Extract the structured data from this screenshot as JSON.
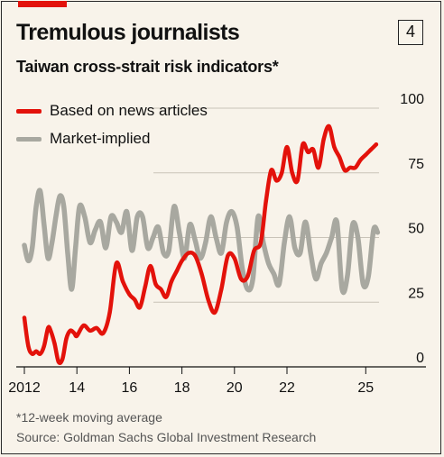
{
  "header": {
    "title": "Tremulous journalists",
    "badge": "4",
    "subtitle": "Taiwan cross-strait risk indicators*"
  },
  "footnotes": {
    "note": "*12-week moving average",
    "source": "Source: Goldman Sachs Global Investment Research"
  },
  "colors": {
    "news": "#e3120b",
    "market": "#a8a8a0",
    "background": "#f8f3ea",
    "grid": "#c9c3b8"
  },
  "chart_data": {
    "type": "line",
    "title": "Taiwan cross-strait risk indicators*",
    "xlabel": "",
    "ylabel": "",
    "xlim": [
      2011.8,
      2025.6
    ],
    "ylim": [
      0,
      100
    ],
    "y_ticks": [
      "0",
      "25",
      "50",
      "75",
      "100"
    ],
    "x_ticks": [
      {
        "x": 2012,
        "label": "2012"
      },
      {
        "x": 2014,
        "label": "14"
      },
      {
        "x": 2016,
        "label": "16"
      },
      {
        "x": 2018,
        "label": "18"
      },
      {
        "x": 2020,
        "label": "20"
      },
      {
        "x": 2022,
        "label": "22"
      },
      {
        "x": 2025,
        "label": "25"
      }
    ],
    "grid": true,
    "legend_position": "top-left",
    "series": [
      {
        "name": "Based on news articles",
        "color": "#e3120b",
        "x": [
          2012.0,
          2012.15,
          2012.3,
          2012.45,
          2012.6,
          2012.75,
          2012.9,
          2013.0,
          2013.15,
          2013.3,
          2013.45,
          2013.6,
          2013.75,
          2013.9,
          2014.0,
          2014.25,
          2014.5,
          2014.75,
          2015.0,
          2015.25,
          2015.5,
          2015.75,
          2016.0,
          2016.2,
          2016.4,
          2016.6,
          2016.8,
          2017.0,
          2017.2,
          2017.4,
          2017.6,
          2017.8,
          2018.0,
          2018.25,
          2018.5,
          2018.75,
          2019.0,
          2019.25,
          2019.5,
          2019.75,
          2020.0,
          2020.25,
          2020.5,
          2020.75,
          2021.0,
          2021.2,
          2021.4,
          2021.6,
          2021.8,
          2022.0,
          2022.2,
          2022.4,
          2022.6,
          2022.8,
          2023.0,
          2023.2,
          2023.4,
          2023.6,
          2023.8,
          2024.0,
          2024.2,
          2024.4,
          2024.6,
          2024.8,
          2025.0,
          2025.2,
          2025.4
        ],
        "values": [
          19,
          8,
          5,
          6,
          5,
          8,
          15,
          14,
          9,
          2,
          3,
          11,
          14,
          13,
          12,
          16,
          14,
          15,
          13,
          21,
          40,
          33,
          28,
          26,
          23,
          31,
          39,
          32,
          30,
          27,
          33,
          37,
          41,
          44,
          43,
          36,
          26,
          21,
          30,
          43,
          42,
          34,
          35,
          45,
          48,
          64,
          76,
          72,
          75,
          85,
          75,
          72,
          86,
          83,
          84,
          77,
          88,
          93,
          85,
          81,
          76,
          77,
          77,
          80,
          82,
          84,
          86
        ]
      },
      {
        "name": "Market-implied",
        "color": "#a8a8a0",
        "x": [
          2012.0,
          2012.15,
          2012.3,
          2012.45,
          2012.6,
          2012.75,
          2012.9,
          2013.05,
          2013.2,
          2013.35,
          2013.5,
          2013.65,
          2013.8,
          2013.95,
          2014.1,
          2014.3,
          2014.5,
          2014.7,
          2014.9,
          2015.1,
          2015.3,
          2015.5,
          2015.7,
          2015.9,
          2016.1,
          2016.3,
          2016.5,
          2016.7,
          2016.9,
          2017.1,
          2017.3,
          2017.5,
          2017.7,
          2017.9,
          2018.1,
          2018.3,
          2018.5,
          2018.7,
          2018.9,
          2019.1,
          2019.3,
          2019.5,
          2019.7,
          2019.9,
          2020.1,
          2020.3,
          2020.5,
          2020.7,
          2020.9,
          2021.1,
          2021.3,
          2021.5,
          2021.7,
          2021.9,
          2022.1,
          2022.3,
          2022.5,
          2022.7,
          2022.9,
          2023.1,
          2023.3,
          2023.5,
          2023.7,
          2023.9,
          2024.1,
          2024.3,
          2024.5,
          2024.7,
          2024.9,
          2025.1,
          2025.3,
          2025.45
        ],
        "values": [
          47,
          41,
          46,
          62,
          68,
          55,
          42,
          48,
          58,
          66,
          62,
          44,
          30,
          46,
          62,
          58,
          48,
          53,
          56,
          46,
          58,
          56,
          52,
          60,
          45,
          58,
          58,
          46,
          50,
          54,
          44,
          45,
          62,
          52,
          42,
          55,
          49,
          42,
          48,
          58,
          50,
          44,
          56,
          60,
          54,
          38,
          30,
          34,
          58,
          48,
          40,
          36,
          32,
          48,
          58,
          46,
          44,
          56,
          44,
          34,
          40,
          44,
          50,
          56,
          30,
          35,
          55,
          50,
          32,
          35,
          53,
          52
        ]
      }
    ]
  }
}
